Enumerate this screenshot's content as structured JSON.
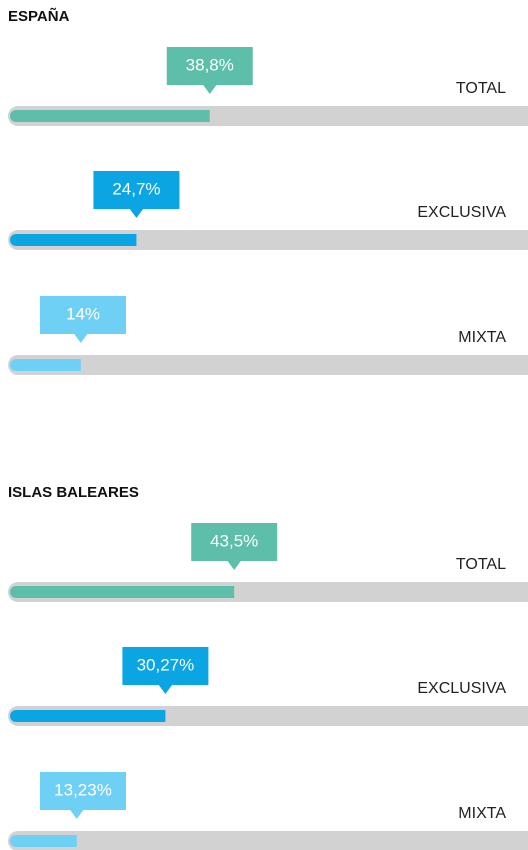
{
  "chart_data": [
    {
      "type": "bar",
      "title": "ESPAÑA",
      "categories": [
        "TOTAL",
        "EXCLUSIVA",
        "MIXTA"
      ],
      "values": [
        38.8,
        24.7,
        14
      ],
      "value_labels": [
        "38,8%",
        "24,7%",
        "14%"
      ],
      "colors": [
        "#5dbfa9",
        "#0aa5e2",
        "#6fd0f6"
      ],
      "xlim": [
        0,
        100
      ]
    },
    {
      "type": "bar",
      "title": "ISLAS BALEARES",
      "categories": [
        "TOTAL",
        "EXCLUSIVA",
        "MIXTA"
      ],
      "values": [
        43.5,
        30.27,
        13.23
      ],
      "value_labels": [
        "43,5%",
        "30,27%",
        "13,23%"
      ],
      "colors": [
        "#5dbfa9",
        "#0aa5e2",
        "#6fd0f6"
      ],
      "xlim": [
        0,
        100
      ]
    }
  ]
}
